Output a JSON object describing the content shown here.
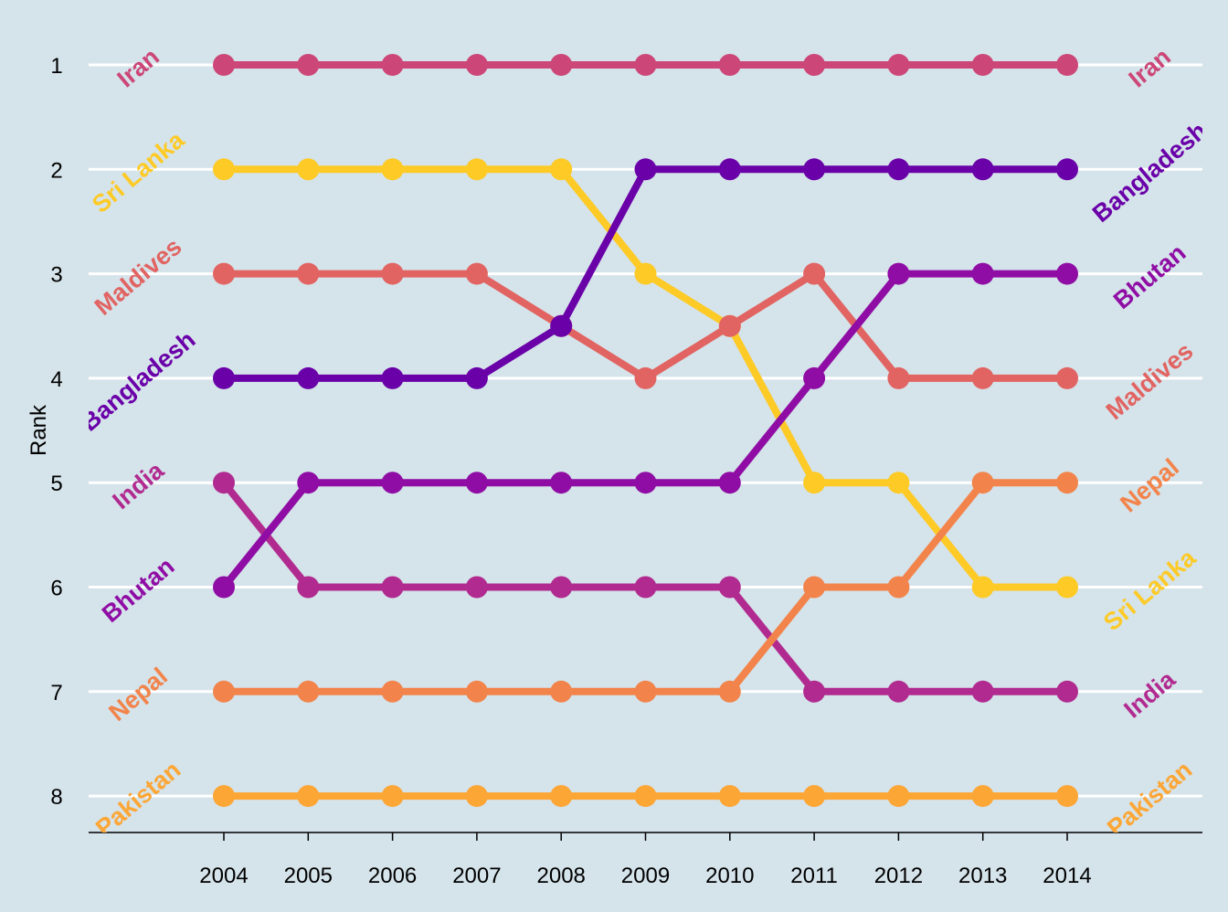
{
  "chart_data": {
    "type": "line",
    "title": "",
    "xlabel": "",
    "ylabel": "Rank",
    "x": [
      2004,
      2005,
      2006,
      2007,
      2008,
      2009,
      2010,
      2011,
      2012,
      2013,
      2014
    ],
    "x_tick_labels": [
      "2004",
      "2005",
      "2006",
      "2007",
      "2008",
      "2009",
      "2010",
      "2011",
      "2012",
      "2013",
      "2014"
    ],
    "y_tick_labels": [
      "1",
      "2",
      "3",
      "4",
      "5",
      "6",
      "7",
      "8"
    ],
    "ylim": [
      8,
      1
    ],
    "y_reversed": true,
    "grid": "horizontal",
    "background": "#D5E3EA",
    "series": [
      {
        "name": "Iran",
        "color": "#CC4778",
        "values": [
          1,
          1,
          1,
          1,
          1,
          1,
          1,
          1,
          1,
          1,
          1
        ]
      },
      {
        "name": "Sri Lanka",
        "color": "#FDCA26",
        "values": [
          2,
          2,
          2,
          2,
          2,
          3,
          3.5,
          5,
          5,
          6,
          6
        ]
      },
      {
        "name": "Maldives",
        "color": "#E16462",
        "values": [
          3,
          3,
          3,
          3,
          3.5,
          4,
          3.5,
          3,
          4,
          4,
          4
        ]
      },
      {
        "name": "Bangladesh",
        "color": "#6A00A8",
        "values": [
          4,
          4,
          4,
          4,
          3.5,
          2,
          2,
          2,
          2,
          2,
          2
        ]
      },
      {
        "name": "India",
        "color": "#B12A90",
        "values": [
          5,
          6,
          6,
          6,
          6,
          6,
          6,
          7,
          7,
          7,
          7
        ]
      },
      {
        "name": "Bhutan",
        "color": "#8F0DA4",
        "values": [
          6,
          5,
          5,
          5,
          5,
          5,
          5,
          4,
          3,
          3,
          3
        ]
      },
      {
        "name": "Nepal",
        "color": "#F2844B",
        "values": [
          7,
          7,
          7,
          7,
          7,
          7,
          7,
          6,
          6,
          5,
          5
        ]
      },
      {
        "name": "Pakistan",
        "color": "#FCA636",
        "values": [
          8,
          8,
          8,
          8,
          8,
          8,
          8,
          8,
          8,
          8,
          8
        ]
      }
    ]
  }
}
